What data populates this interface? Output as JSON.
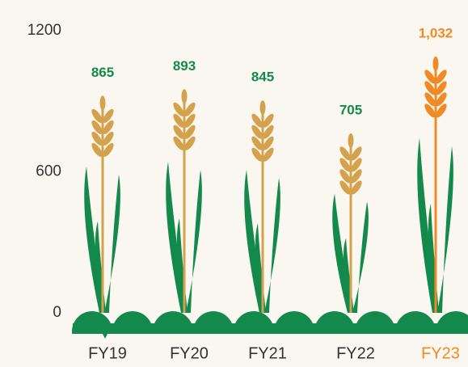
{
  "chart_data": {
    "type": "pictorial-bar",
    "categories": [
      "FY19",
      "FY20",
      "FY21",
      "FY22",
      "FY23"
    ],
    "values": [
      865,
      893,
      845,
      705,
      1032
    ],
    "value_labels": [
      "865",
      "893",
      "845",
      "705",
      "1,032"
    ],
    "colors": [
      "#138a4c",
      "#138a4c",
      "#138a4c",
      "#138a4c",
      "#f08a24"
    ],
    "category_label_colors": [
      "#333333",
      "#333333",
      "#333333",
      "#333333",
      "#f08a24"
    ],
    "leaf_color": "#138a4c",
    "grain_color": "#d4a24c",
    "ylim": [
      0,
      1200
    ],
    "yticks": [
      0,
      600,
      1200
    ]
  }
}
